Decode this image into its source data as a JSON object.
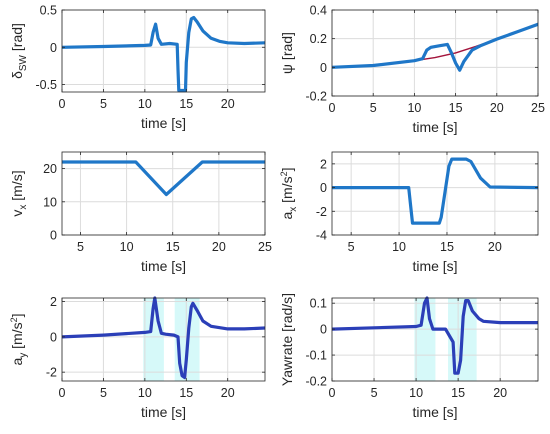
{
  "colors": {
    "main_line": "#1f77c8",
    "dark_line": "#2b3fb8",
    "reference_line": "#a3143c",
    "band": "#c8f7f7",
    "grid": "#dcdcdc",
    "axis": "#262626"
  },
  "chart_data": [
    {
      "id": "steer",
      "type": "line",
      "xlabel": "time [s]",
      "ylabel_parts": [
        "δ",
        "SW",
        " [rad]"
      ],
      "xlim": [
        0,
        24.5
      ],
      "ylim": [
        -0.6,
        0.5
      ],
      "xticks": [
        0,
        5,
        10,
        15,
        20
      ],
      "xtick_labels": [
        "0",
        "5",
        "10",
        "15",
        "20"
      ],
      "yticks": [
        -0.5,
        0,
        0.5
      ],
      "ytick_labels": [
        "-0.5",
        "0",
        "0.5"
      ],
      "grid": true,
      "series": [
        {
          "color_key": "main_line",
          "x": [
            0,
            5,
            10,
            10.7,
            11,
            11.3,
            11.6,
            12,
            13,
            13.9,
            14.0,
            14.1,
            14.6,
            14.9,
            15.0,
            15.3,
            15.6,
            15.9,
            16.3,
            17,
            18,
            19,
            20,
            22,
            24.5
          ],
          "y": [
            0,
            0.01,
            0.025,
            0.03,
            0.2,
            0.31,
            0.12,
            0.04,
            0.05,
            0.04,
            -0.3,
            -0.58,
            -0.58,
            -0.58,
            -0.2,
            0.2,
            0.38,
            0.4,
            0.34,
            0.22,
            0.12,
            0.08,
            0.06,
            0.05,
            0.06
          ]
        }
      ]
    },
    {
      "id": "yaw",
      "type": "line",
      "xlabel": "time [s]",
      "ylabel_parts": [
        "ψ",
        "",
        " [rad]"
      ],
      "xlim": [
        0,
        25
      ],
      "ylim": [
        -0.2,
        0.4
      ],
      "xticks": [
        0,
        5,
        10,
        15,
        20,
        25
      ],
      "xtick_labels": [
        "0",
        "5",
        "10",
        "15",
        "20",
        "25"
      ],
      "yticks": [
        -0.2,
        0,
        0.2,
        0.4
      ],
      "ytick_labels": [
        "-0.2",
        "0",
        "0.2",
        "0.4"
      ],
      "grid": true,
      "series": [
        {
          "color_key": "reference_line",
          "x": [
            0,
            2.5,
            5,
            7.5,
            10,
            12.5,
            15,
            17.5,
            20,
            22.5,
            25
          ],
          "y": [
            0,
            0.004,
            0.013,
            0.028,
            0.046,
            0.068,
            0.101,
            0.147,
            0.197,
            0.248,
            0.3
          ]
        },
        {
          "color_key": "main_line",
          "x": [
            0,
            5,
            10,
            11,
            11.5,
            12,
            13,
            14,
            14.5,
            15,
            15.5,
            16,
            17,
            18,
            20,
            22.5,
            25
          ],
          "y": [
            0,
            0.013,
            0.046,
            0.06,
            0.12,
            0.14,
            0.15,
            0.16,
            0.1,
            0.03,
            -0.02,
            0.04,
            0.12,
            0.15,
            0.197,
            0.248,
            0.3
          ]
        }
      ]
    },
    {
      "id": "vx",
      "type": "line",
      "xlabel": "time [s]",
      "ylabel_parts": [
        "v",
        "x",
        " [m/s]"
      ],
      "xlim": [
        3,
        25
      ],
      "ylim": [
        0,
        25
      ],
      "xticks": [
        5,
        10,
        15,
        20,
        25
      ],
      "xtick_labels": [
        "5",
        "10",
        "15",
        "20",
        "25"
      ],
      "yticks": [
        0,
        10,
        20
      ],
      "ytick_labels": [
        "0",
        "10",
        "20"
      ],
      "grid": true,
      "series": [
        {
          "color_key": "main_line",
          "x": [
            3,
            11,
            14.3,
            18.2,
            25
          ],
          "y": [
            22,
            22,
            12.2,
            22,
            22
          ]
        }
      ]
    },
    {
      "id": "ax",
      "type": "line",
      "xlabel": "time [s]",
      "ylabel_parts": [
        "a",
        "x",
        " [m/s",
        "2",
        "]"
      ],
      "xlim": [
        3,
        24.5
      ],
      "ylim": [
        -4,
        3
      ],
      "xticks": [
        5,
        10,
        15,
        20
      ],
      "xtick_labels": [
        "5",
        "10",
        "15",
        "20"
      ],
      "yticks": [
        -4,
        -2,
        0,
        2
      ],
      "ytick_labels": [
        "-4",
        "-2",
        "0",
        "2"
      ],
      "grid": true,
      "series": [
        {
          "color_key": "main_line",
          "x": [
            3,
            11,
            11.2,
            11.4,
            14.2,
            14.4,
            15.2,
            15.5,
            17,
            17.5,
            18.5,
            19.5,
            24.5
          ],
          "y": [
            0,
            0,
            -1.5,
            -3,
            -3,
            -2.5,
            1.8,
            2.4,
            2.4,
            2.2,
            0.8,
            0.05,
            0
          ]
        }
      ]
    },
    {
      "id": "ay",
      "type": "line",
      "xlabel": "time [s]",
      "ylabel_parts": [
        "a",
        "y",
        " [m/s",
        "2",
        "]"
      ],
      "xlim": [
        0,
        24.5
      ],
      "ylim": [
        -2.5,
        2.2
      ],
      "xticks": [
        0,
        5,
        10,
        15,
        20
      ],
      "xtick_labels": [
        "0",
        "5",
        "10",
        "15",
        "20"
      ],
      "yticks": [
        -2,
        0,
        2
      ],
      "ytick_labels": [
        "-2",
        "0",
        "2"
      ],
      "grid": true,
      "bands": [
        [
          9.8,
          12.3
        ],
        [
          13.6,
          16.6
        ]
      ],
      "series": [
        {
          "color_key": "dark_line",
          "x": [
            0,
            5,
            10,
            10.7,
            11,
            11.2,
            11.6,
            12,
            12.5,
            13.5,
            14,
            14.2,
            14.5,
            14.8,
            15.0,
            15.3,
            15.6,
            15.8,
            16.3,
            17,
            18,
            20,
            22,
            24.5
          ],
          "y": [
            0,
            0.1,
            0.25,
            0.3,
            1.6,
            2.2,
            0.9,
            0.2,
            0.15,
            0.1,
            0,
            -1.5,
            -2.2,
            -2.3,
            -1.3,
            0.5,
            1.7,
            1.9,
            1.5,
            0.9,
            0.6,
            0.45,
            0.45,
            0.5
          ]
        }
      ]
    },
    {
      "id": "yawrate",
      "type": "line",
      "xlabel": "time [s]",
      "ylabel_parts": [
        "Yawrate",
        "",
        " [rad/s]"
      ],
      "xlim": [
        0,
        24.5
      ],
      "ylim": [
        -0.2,
        0.12
      ],
      "xticks": [
        0,
        5,
        10,
        15,
        20
      ],
      "xtick_labels": [
        "0",
        "5",
        "10",
        "15",
        "20"
      ],
      "yticks": [
        -0.2,
        -0.1,
        0,
        0.1
      ],
      "ytick_labels": [
        "-0.2",
        "-0.1",
        "0",
        "0.1"
      ],
      "grid": true,
      "bands": [
        [
          9.8,
          12.3
        ],
        [
          13.8,
          17.2
        ]
      ],
      "series": [
        {
          "color_key": "dark_line",
          "x": [
            0,
            5,
            10,
            10.6,
            11,
            11.3,
            11.6,
            12,
            13.5,
            14.4,
            14.6,
            14.8,
            15.0,
            15.3,
            15.6,
            15.9,
            16.2,
            16.7,
            17.5,
            18,
            20,
            22,
            24.5
          ],
          "y": [
            0,
            0.005,
            0.01,
            0.015,
            0.1,
            0.12,
            0.04,
            0,
            0,
            -0.05,
            -0.17,
            -0.17,
            -0.17,
            -0.12,
            0.05,
            0.11,
            0.11,
            0.07,
            0.04,
            0.03,
            0.025,
            0.025,
            0.025
          ]
        }
      ]
    }
  ]
}
